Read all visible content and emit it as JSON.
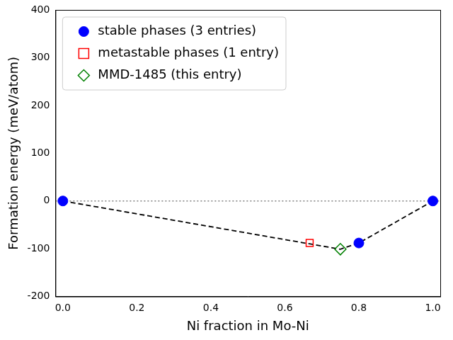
{
  "chart_data": {
    "type": "scatter",
    "x_label": "Ni fraction in Mo-Ni",
    "y_label": "Formation energy (meV/atom)",
    "xlim": [
      -0.02,
      1.02
    ],
    "ylim": [
      -200,
      400
    ],
    "xticks": [
      {
        "value": 0,
        "label": "0.0"
      },
      {
        "value": 0.2,
        "label": "0.2"
      },
      {
        "value": 0.4,
        "label": "0.4"
      },
      {
        "value": 0.6,
        "label": "0.6"
      },
      {
        "value": 0.8,
        "label": "0.8"
      },
      {
        "value": 1,
        "label": "1.0"
      }
    ],
    "yticks": [
      -200,
      -100,
      0,
      100,
      200,
      300,
      400
    ],
    "grid": false,
    "legend": "upper left",
    "series": [
      {
        "name": "stable phases (3 entries)",
        "color": "#0000ff",
        "marker": "circle",
        "x": [
          0,
          0.8,
          1
        ],
        "values": [
          0,
          -88,
          0
        ]
      },
      {
        "name": "metastable phases (1 entry)",
        "color": "#ff0000",
        "marker": "open square",
        "x": [
          0.667
        ],
        "values": [
          -88
        ]
      },
      {
        "name": "MMD-1485 (this entry)",
        "color": "#008000",
        "marker": "open diamond",
        "x": [
          0.75
        ],
        "values": [
          -101
        ]
      }
    ],
    "lines": [
      {
        "x": [
          0,
          0.75,
          0.8,
          1
        ],
        "values": [
          0,
          -101,
          -88,
          0
        ],
        "color": "#000000",
        "line_style": "dashed"
      }
    ],
    "hlines": [
      {
        "y": 0,
        "color": "#808080",
        "line_style": "dotted"
      }
    ]
  }
}
